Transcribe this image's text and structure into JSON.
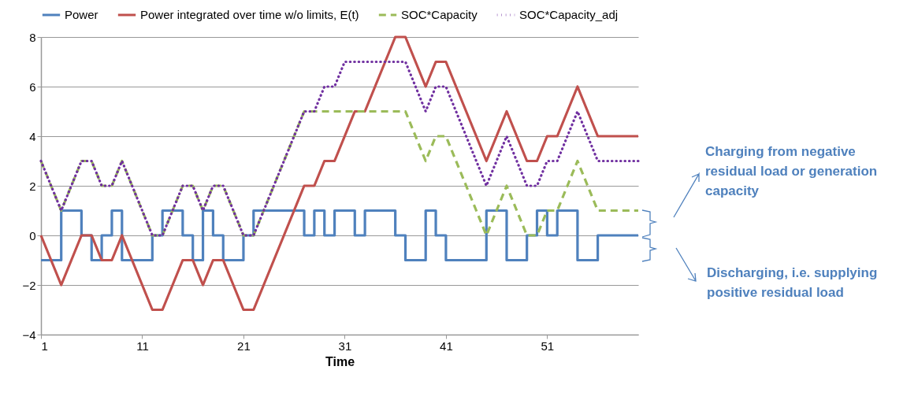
{
  "chart_data": {
    "type": "line",
    "xlabel": "Time",
    "x": [
      1,
      2,
      3,
      4,
      5,
      6,
      7,
      8,
      9,
      10,
      11,
      12,
      13,
      14,
      15,
      16,
      17,
      18,
      19,
      20,
      21,
      22,
      23,
      24,
      25,
      26,
      27,
      28,
      29,
      30,
      31,
      32,
      33,
      34,
      35,
      36,
      37,
      38,
      39,
      40,
      41,
      42,
      43,
      44,
      45,
      46,
      47,
      48,
      49,
      50,
      51,
      52,
      53,
      54,
      55,
      56,
      57,
      58,
      59,
      60
    ],
    "xlim": [
      1,
      60
    ],
    "xticks": [
      1,
      11,
      21,
      31,
      41,
      51
    ],
    "ylim": [
      -4,
      8
    ],
    "yticks": [
      -4,
      -2,
      0,
      2,
      4,
      6,
      8
    ],
    "grid": "y",
    "legend": "top",
    "marker": "none",
    "series": [
      {
        "name": "Power",
        "type": "step",
        "color": "#4f81bd",
        "line_style": "solid",
        "values": [
          -1,
          -1,
          1,
          1,
          0,
          -1,
          0,
          1,
          -1,
          -1,
          -1,
          0,
          1,
          1,
          0,
          -1,
          1,
          0,
          -1,
          -1,
          0,
          1,
          1,
          1,
          1,
          1,
          0,
          1,
          0,
          1,
          1,
          0,
          1,
          1,
          1,
          0,
          -1,
          -1,
          1,
          0,
          -1,
          -1,
          -1,
          -1,
          1,
          1,
          -1,
          -1,
          0,
          1,
          0,
          1,
          1,
          -1,
          -1,
          0,
          0,
          0,
          0,
          0
        ]
      },
      {
        "name": "Power integrated over time w/o limits, E(t)",
        "type": "line",
        "color": "#c0504d",
        "line_style": "solid",
        "values": [
          0,
          -1,
          -2,
          -1,
          0,
          0,
          -1,
          -1,
          0,
          -1,
          -2,
          -3,
          -3,
          -2,
          -1,
          -1,
          -2,
          -1,
          -1,
          -2,
          -3,
          -3,
          -2,
          -1,
          0,
          1,
          2,
          2,
          3,
          3,
          4,
          5,
          5,
          6,
          7,
          8,
          8,
          7,
          6,
          7,
          7,
          6,
          5,
          4,
          3,
          4,
          5,
          4,
          3,
          3,
          4,
          4,
          5,
          6,
          5,
          4,
          4,
          4,
          4,
          4
        ]
      },
      {
        "name": "SOC*Capacity",
        "type": "line",
        "color": "#9bbb59",
        "line_style": "dashed",
        "values": [
          3,
          2,
          1,
          2,
          3,
          3,
          2,
          2,
          3,
          2,
          1,
          0,
          0,
          1,
          2,
          2,
          1,
          2,
          2,
          1,
          0,
          0,
          1,
          2,
          3,
          4,
          5,
          5,
          5,
          5,
          5,
          5,
          5,
          5,
          5,
          5,
          5,
          4,
          3,
          4,
          4,
          3,
          2,
          1,
          0,
          1,
          2,
          1,
          0,
          0,
          1,
          1,
          2,
          3,
          2,
          1,
          1,
          1,
          1,
          1
        ]
      },
      {
        "name": "SOC*Capacity_adj",
        "type": "line",
        "color": "#7030a0",
        "line_style": "dotted",
        "values": [
          3,
          2,
          1,
          2,
          3,
          3,
          2,
          2,
          3,
          2,
          1,
          0,
          0,
          1,
          2,
          2,
          1,
          2,
          2,
          1,
          0,
          0,
          1,
          2,
          3,
          4,
          5,
          5,
          6,
          6,
          7,
          7,
          7,
          7,
          7,
          7,
          7,
          6,
          5,
          6,
          6,
          5,
          4,
          3,
          2,
          3,
          4,
          3,
          2,
          2,
          3,
          3,
          4,
          5,
          4,
          3,
          3,
          3,
          3,
          3
        ]
      }
    ],
    "annotations": [
      "Charging from negative residual load or generation capacity",
      "Discharging, i.e. supplying positive residual load"
    ]
  }
}
